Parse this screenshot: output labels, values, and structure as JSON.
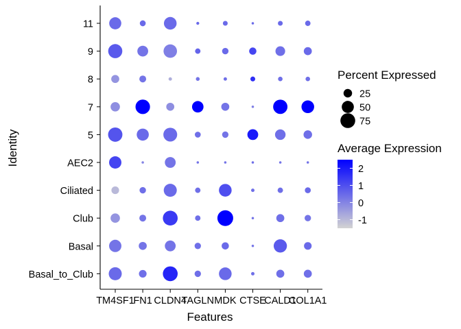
{
  "chart_data": {
    "type": "dotplot",
    "xlabel": "Features",
    "ylabel": "Identity",
    "features": [
      "TM4SF1",
      "FN1",
      "CLDN4",
      "TAGLN",
      "MDK",
      "CTSE",
      "CALD1",
      "COL1A1"
    ],
    "identities": [
      "11",
      "9",
      "8",
      "7",
      "5",
      "AEC2",
      "Ciliated",
      "Club",
      "Basal",
      "Basal_to_Club"
    ],
    "pct_legend_title": "Percent Expressed",
    "pct_breaks": [
      25,
      50,
      75
    ],
    "avg_legend_title": "Average Expression",
    "avg_breaks": [
      2,
      1,
      0,
      -1
    ],
    "avg_range": [
      -1.5,
      2.5
    ],
    "color_low": "#d3d3d3",
    "color_high": "#0000ff",
    "pct_expressed": [
      [
        50,
        12,
        55,
        3,
        8,
        2,
        8,
        10
      ],
      [
        68,
        40,
        62,
        10,
        14,
        18,
        32,
        22
      ],
      [
        22,
        16,
        4,
        5,
        4,
        8,
        7,
        7
      ],
      [
        30,
        72,
        22,
        45,
        22,
        2,
        70,
        55
      ],
      [
        70,
        50,
        65,
        12,
        14,
        40,
        38,
        25
      ],
      [
        52,
        2,
        40,
        2,
        2,
        2,
        2,
        2
      ],
      [
        20,
        14,
        58,
        10,
        55,
        4,
        10,
        12
      ],
      [
        30,
        16,
        75,
        10,
        85,
        2,
        22,
        14
      ],
      [
        52,
        22,
        40,
        14,
        18,
        2,
        60,
        20
      ],
      [
        58,
        20,
        75,
        14,
        55,
        4,
        22,
        22
      ]
    ],
    "avg_expression": [
      [
        0.5,
        0.5,
        0.5,
        0.5,
        0.5,
        0.5,
        0.5,
        0.5
      ],
      [
        0.8,
        0.3,
        0.1,
        0.6,
        0.5,
        1.2,
        0.4,
        0.5
      ],
      [
        -0.3,
        0.3,
        -0.8,
        0.3,
        0.4,
        1.6,
        0.4,
        0.4
      ],
      [
        -0.2,
        2.5,
        -0.2,
        2.5,
        0.3,
        0.1,
        2.5,
        2.5
      ],
      [
        0.9,
        0.5,
        0.5,
        0.4,
        0.3,
        2.0,
        0.4,
        0.4
      ],
      [
        1.2,
        0.0,
        0.3,
        0.3,
        0.3,
        0.4,
        0.3,
        0.3
      ],
      [
        -1.0,
        0.4,
        0.5,
        0.4,
        1.0,
        0.4,
        0.4,
        0.5
      ],
      [
        -0.3,
        0.3,
        1.4,
        0.4,
        2.5,
        0.3,
        0.4,
        0.3
      ],
      [
        0.3,
        0.3,
        0.3,
        0.4,
        0.5,
        0.3,
        0.8,
        0.5
      ],
      [
        0.5,
        0.4,
        1.8,
        0.4,
        0.5,
        0.4,
        0.4,
        0.4
      ]
    ]
  }
}
